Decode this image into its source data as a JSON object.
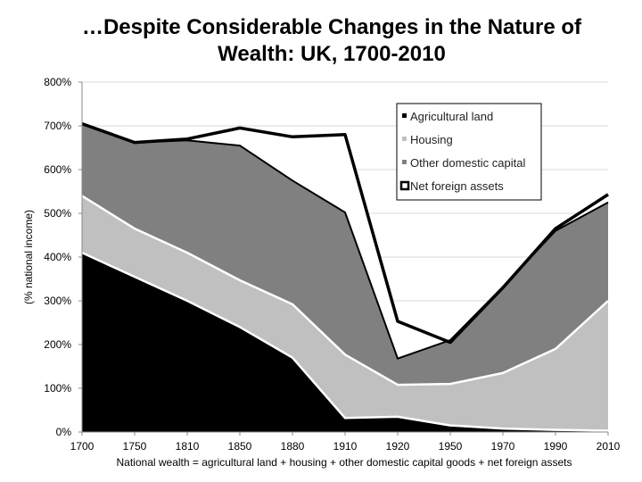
{
  "colors": {
    "agricultural_land": "#000000",
    "housing": "#c0c0c0",
    "other_domestic_capital": "#808080",
    "net_foreign_assets": "#ffffff",
    "boundary": "#ffffff",
    "total_line": "#000000",
    "grid": "#d9d9d9"
  },
  "chart_data": {
    "type": "area",
    "title": [
      "…Despite Considerable Changes in the Nature of",
      "Wealth: UK, 1700-2010"
    ],
    "ylabel": "(% national income)",
    "xlabel": "National wealth = agricultural land + housing + other domestic capital goods + net foreign assets",
    "categories": [
      "1700",
      "1750",
      "1810",
      "1850",
      "1880",
      "1910",
      "1920",
      "1950",
      "1970",
      "1990",
      "2010"
    ],
    "ylim": [
      0,
      800
    ],
    "yticks": [
      0,
      100,
      200,
      300,
      400,
      500,
      600,
      700,
      800
    ],
    "ytick_labels": [
      "0%",
      "100%",
      "200%",
      "300%",
      "400%",
      "500%",
      "600%",
      "700%",
      "800%"
    ],
    "stacked": true,
    "grid": "horizontal",
    "legend_position": "top-right",
    "series": [
      {
        "name": "Agricultural land",
        "key": "agricultural_land",
        "values": [
          410,
          355,
          300,
          240,
          170,
          32,
          35,
          15,
          8,
          5,
          3
        ]
      },
      {
        "name": "Housing",
        "key": "housing",
        "values": [
          130,
          110,
          110,
          107,
          122,
          145,
          73,
          95,
          127,
          185,
          297
        ]
      },
      {
        "name": "Other domestic capital",
        "key": "other_domestic_capital",
        "values": [
          165,
          197,
          257,
          308,
          283,
          325,
          60,
          100,
          197,
          270,
          225
        ]
      },
      {
        "name": "Net foreign assets",
        "key": "net_foreign_assets",
        "values": [
          0,
          0,
          3,
          40,
          100,
          178,
          85,
          -5,
          -2,
          5,
          18
        ]
      }
    ]
  }
}
